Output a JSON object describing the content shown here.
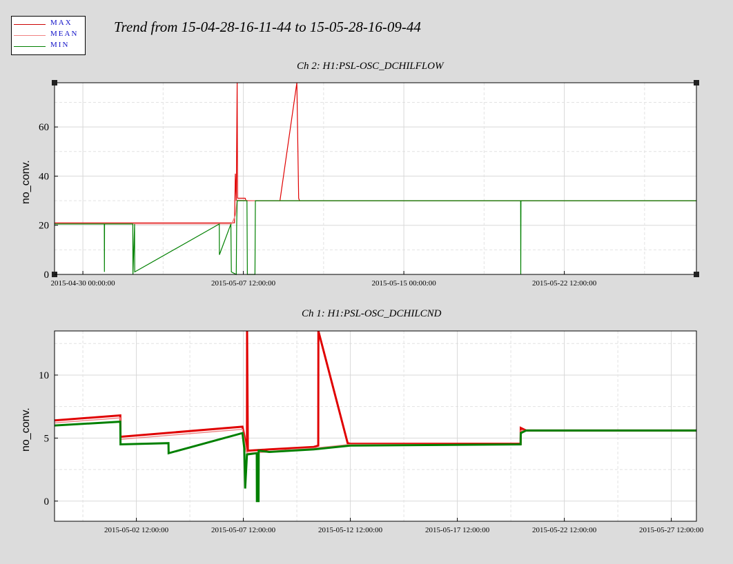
{
  "page": {
    "title": "Trend from 15-04-28-16-11-44 to 15-05-28-16-09-44"
  },
  "legend": {
    "items": [
      {
        "label": "MAX",
        "color": "#cc0000"
      },
      {
        "label": "MEAN",
        "color": "#f08080"
      },
      {
        "label": "MIN",
        "color": "#008000"
      }
    ]
  },
  "colors": {
    "max": "#e00000",
    "mean": "#ef8a8a",
    "min": "#008000"
  },
  "chart_data": [
    {
      "type": "line",
      "title": "Ch 2: H1:PSL-OSC_DCHILFLOW",
      "ylabel": "no_conv.",
      "xlabel": "",
      "x_unit": "date (days since 2015-04-28 16:11:44 epoch)",
      "xlim": [
        "2015-04-28 16:11:44",
        "2015-05-28 16:09:44"
      ],
      "ylim": [
        0,
        78
      ],
      "yticks": [
        0,
        20,
        40,
        60
      ],
      "xticks": [
        {
          "label": "2015-04-30 00:00:00",
          "x": "2015-04-30 00:00:00"
        },
        {
          "label": "2015-05-07 12:00:00",
          "x": "2015-05-07 12:00:00"
        },
        {
          "label": "2015-05-15 00:00:00",
          "x": "2015-05-15 00:00:00"
        },
        {
          "label": "2015-05-22 12:00:00",
          "x": "2015-05-22 12:00:00"
        }
      ],
      "grid": true,
      "series": [
        {
          "name": "MAX",
          "x": [
            "2015-04-28 16:11:44",
            "2015-05-06 23:00:00",
            "2015-05-07 02:00:00",
            "2015-05-07 03:00:00",
            "2015-05-07 04:00:00",
            "2015-05-07 05:00:00",
            "2015-05-07 05:30:00",
            "2015-05-07 08:00:00",
            "2015-05-07 14:00:00",
            "2015-05-07 15:00:00",
            "2015-05-07 16:00:00",
            "2015-05-08 02:00:00",
            "2015-05-09 05:00:00",
            "2015-05-10 00:00:00",
            "2015-05-10 02:00:00",
            "2015-05-10 03:00:00",
            "2015-05-11 07:00:00",
            "2015-05-11 08:00:00",
            "2015-05-28 16:09:44"
          ],
          "y": [
            21,
            21,
            21,
            41,
            30,
            78,
            31,
            31,
            31,
            30,
            30,
            30,
            30,
            78,
            31,
            30,
            30,
            30,
            30
          ]
        },
        {
          "name": "MEAN",
          "x": [
            "2015-04-28 16:11:44",
            "2015-05-06 23:00:00",
            "2015-05-07 03:00:00",
            "2015-05-07 05:00:00",
            "2015-05-08 02:00:00",
            "2015-05-09 05:00:00",
            "2015-05-11 08:00:00",
            "2015-05-28 16:09:44"
          ],
          "y": [
            20.6,
            20.6,
            24,
            30.2,
            30,
            30,
            30,
            30
          ]
        },
        {
          "name": "MIN",
          "x": [
            "2015-04-28 16:11:44",
            "2015-05-01 00:00:00",
            "2015-05-01 00:10:00",
            "2015-05-01 00:20:00",
            "2015-05-02 08:00:00",
            "2015-05-02 08:10:00",
            "2015-05-02 10:00:00",
            "2015-05-02 10:10:00",
            "2015-05-06 09:00:00",
            "2015-05-06 09:10:00",
            "2015-05-06 22:00:00",
            "2015-05-06 22:30:00",
            "2015-05-07 04:00:00",
            "2015-05-07 04:30:00",
            "2015-05-07 05:00:00",
            "2015-05-07 16:00:00",
            "2015-05-07 16:30:00",
            "2015-05-07 17:00:00",
            "2015-05-08 01:00:00",
            "2015-05-08 01:30:00",
            "2015-05-08 02:00:00",
            "2015-05-20 11:00:00",
            "2015-05-20 11:10:00",
            "2015-05-20 11:20:00",
            "2015-05-28 16:09:44"
          ],
          "y": [
            20.5,
            20.5,
            1,
            20.5,
            20.5,
            0,
            20.5,
            1,
            20.5,
            8,
            20.5,
            1,
            0,
            20,
            30,
            30,
            0,
            0,
            0,
            30,
            30,
            30,
            0,
            30,
            30
          ]
        }
      ]
    },
    {
      "type": "line",
      "title": "Ch 1: H1:PSL-OSC_DCHILCND",
      "ylabel": "no_conv.",
      "xlabel": "",
      "xlim": [
        "2015-04-28 16:11:44",
        "2015-05-28 16:09:44"
      ],
      "ylim": [
        -1.6,
        13.5
      ],
      "yticks": [
        0,
        5,
        10
      ],
      "xticks": [
        {
          "label": "2015-05-02 12:00:00",
          "x": "2015-05-02 12:00:00"
        },
        {
          "label": "2015-05-07 12:00:00",
          "x": "2015-05-07 12:00:00"
        },
        {
          "label": "2015-05-12 12:00:00",
          "x": "2015-05-12 12:00:00"
        },
        {
          "label": "2015-05-17 12:00:00",
          "x": "2015-05-17 12:00:00"
        },
        {
          "label": "2015-05-22 12:00:00",
          "x": "2015-05-22 12:00:00"
        },
        {
          "label": "2015-05-27 12:00:00",
          "x": "2015-05-27 12:00:00"
        }
      ],
      "grid": true,
      "series": [
        {
          "name": "MAX",
          "x": [
            "2015-04-28 16:11:44",
            "2015-05-01 18:00:00",
            "2015-05-01 18:10:00",
            "2015-05-07 11:00:00",
            "2015-05-07 13:00:00",
            "2015-05-07 16:00:00",
            "2015-05-07 16:10:00",
            "2015-05-07 17:00:00",
            "2015-05-08 17:00:00",
            "2015-05-08 17:10:00",
            "2015-05-09 18:00:00",
            "2015-05-10 19:00:00",
            "2015-05-11 00:00:00",
            "2015-05-11 00:10:00",
            "2015-05-12 09:00:00",
            "2015-05-12 12:00:00",
            "2015-05-12 12:10:00",
            "2015-05-20 11:00:00",
            "2015-05-20 11:10:00",
            "2015-05-20 17:00:00",
            "2015-05-28 16:09:44"
          ],
          "y": [
            6.4,
            6.8,
            5.1,
            5.9,
            5.2,
            3.9,
            13.5,
            4.0,
            4.1,
            4.1,
            4.2,
            4.3,
            4.4,
            13.5,
            4.6,
            4.55,
            4.55,
            4.55,
            5.8,
            5.6,
            5.6
          ]
        },
        {
          "name": "MEAN",
          "x": [
            "2015-04-28 16:11:44",
            "2015-05-01 18:00:00",
            "2015-05-01 18:10:00",
            "2015-05-07 11:00:00",
            "2015-05-07 16:00:00",
            "2015-05-08 17:00:00",
            "2015-05-09 18:00:00",
            "2015-05-10 19:00:00",
            "2015-05-12 12:00:00",
            "2015-05-20 11:00:00",
            "2015-05-20 11:10:00",
            "2015-05-28 16:09:44"
          ],
          "y": [
            6.2,
            6.6,
            4.9,
            5.7,
            3.8,
            3.9,
            4.1,
            4.2,
            4.5,
            4.5,
            5.6,
            5.6
          ]
        },
        {
          "name": "MIN",
          "x": [
            "2015-04-28 16:11:44",
            "2015-05-01 18:00:00",
            "2015-05-01 18:10:00",
            "2015-05-04 00:00:00",
            "2015-05-04 00:10:00",
            "2015-05-07 11:00:00",
            "2015-05-07 13:00:00",
            "2015-05-07 14:00:00",
            "2015-05-07 16:00:00",
            "2015-05-08 03:00:00",
            "2015-05-08 03:10:00",
            "2015-05-08 05:00:00",
            "2015-05-08 05:10:00",
            "2015-05-08 17:00:00",
            "2015-05-09 18:00:00",
            "2015-05-10 19:00:00",
            "2015-05-12 12:00:00",
            "2015-05-20 11:00:00",
            "2015-05-20 11:10:00",
            "2015-05-20 17:00:00",
            "2015-05-28 16:09:44"
          ],
          "y": [
            6.0,
            6.3,
            4.5,
            4.6,
            3.8,
            5.4,
            4.2,
            1.0,
            3.7,
            3.8,
            0,
            0,
            4.0,
            3.9,
            4.0,
            4.1,
            4.4,
            4.5,
            5.4,
            5.6,
            5.6
          ]
        }
      ]
    }
  ]
}
